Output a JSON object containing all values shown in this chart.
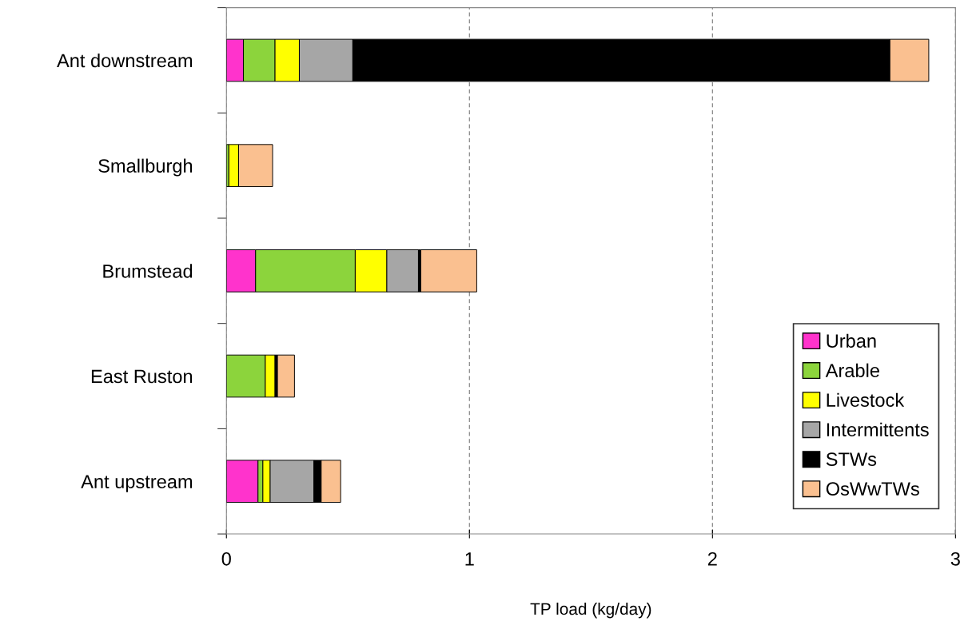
{
  "chart_data": {
    "type": "bar",
    "orientation": "horizontal",
    "stacked": true,
    "xlabel": "TP load (kg/day)",
    "categories": [
      "Ant downstream",
      "Smallburgh",
      "Brumstead",
      "East Ruston",
      "Ant upstream"
    ],
    "series": [
      {
        "name": "Urban",
        "color": "#ff33cc",
        "values": [
          0.07,
          0,
          0.12,
          0,
          0.13
        ]
      },
      {
        "name": "Arable",
        "color": "#8cd43c",
        "values": [
          0.13,
          0.01,
          0.41,
          0.16,
          0.02
        ]
      },
      {
        "name": "Livestock",
        "color": "#ffff00",
        "values": [
          0.1,
          0.04,
          0.13,
          0.04,
          0.03
        ]
      },
      {
        "name": "Intermittents",
        "color": "#a6a6a6",
        "values": [
          0.22,
          0,
          0.13,
          0,
          0.18
        ]
      },
      {
        "name": "STWs",
        "color": "#000000",
        "values": [
          2.21,
          0,
          0.01,
          0.01,
          0.03
        ]
      },
      {
        "name": "OsWwTWs",
        "color": "#fac090",
        "values": [
          0.16,
          0.14,
          0.23,
          0.07,
          0.08
        ]
      }
    ],
    "xlim": [
      0,
      3
    ],
    "xticks": [
      0,
      1,
      2,
      3
    ],
    "grid": "x",
    "legend": "bottom right",
    "tick_labels": "x"
  }
}
